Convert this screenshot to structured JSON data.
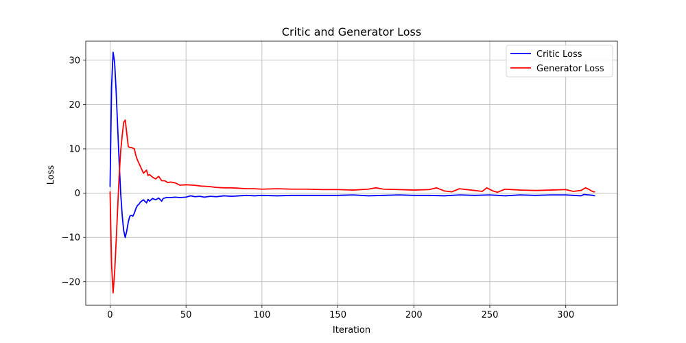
{
  "chart_data": {
    "type": "line",
    "title": "Critic and Generator Loss",
    "xlabel": "Iteration",
    "ylabel": "Loss",
    "xlim": [
      -16,
      334
    ],
    "ylim": [
      -25.3,
      34.3
    ],
    "xticks": [
      0,
      50,
      100,
      150,
      200,
      250,
      300
    ],
    "yticks": [
      -20,
      -10,
      0,
      10,
      20,
      30
    ],
    "ytick_labels": [
      "−20",
      "−10",
      "0",
      "10",
      "20",
      "30"
    ],
    "grid": true,
    "legend_position": "top-right",
    "series": [
      {
        "name": "Critic Loss",
        "color": "#0000ff",
        "x": [
          0,
          1,
          2,
          3,
          4,
          5,
          6,
          7,
          8,
          9,
          10,
          11,
          12,
          13,
          14,
          15,
          16,
          17,
          18,
          19,
          20,
          22,
          24,
          25,
          26,
          28,
          30,
          32,
          34,
          35,
          37,
          40,
          43,
          46,
          50,
          53,
          56,
          59,
          62,
          66,
          70,
          75,
          80,
          85,
          90,
          95,
          100,
          110,
          120,
          130,
          140,
          150,
          160,
          170,
          180,
          190,
          200,
          210,
          220,
          230,
          240,
          250,
          260,
          270,
          280,
          290,
          300,
          305,
          310,
          312,
          315,
          318,
          319
        ],
        "y": [
          1.5,
          24.0,
          31.8,
          29.5,
          23.0,
          15.0,
          7.0,
          0.0,
          -5.0,
          -8.5,
          -10.0,
          -8.5,
          -6.5,
          -5.2,
          -5.0,
          -5.2,
          -4.5,
          -3.5,
          -2.8,
          -2.5,
          -2.0,
          -1.5,
          -2.2,
          -1.4,
          -1.8,
          -1.2,
          -1.5,
          -1.1,
          -1.8,
          -1.2,
          -1.0,
          -1.0,
          -0.9,
          -1.0,
          -0.9,
          -0.6,
          -0.8,
          -0.7,
          -0.9,
          -0.7,
          -0.8,
          -0.6,
          -0.7,
          -0.6,
          -0.5,
          -0.6,
          -0.5,
          -0.6,
          -0.5,
          -0.5,
          -0.5,
          -0.5,
          -0.4,
          -0.6,
          -0.5,
          -0.4,
          -0.5,
          -0.5,
          -0.6,
          -0.4,
          -0.5,
          -0.4,
          -0.6,
          -0.4,
          -0.5,
          -0.4,
          -0.4,
          -0.5,
          -0.6,
          -0.3,
          -0.4,
          -0.5,
          -0.6
        ]
      },
      {
        "name": "Generator Loss",
        "color": "#ff0000",
        "x": [
          0,
          1,
          2,
          3,
          4,
          5,
          6,
          7,
          8,
          9,
          10,
          11,
          12,
          13,
          14,
          16,
          17,
          18,
          20,
          22,
          24,
          25,
          26,
          28,
          30,
          32,
          34,
          36,
          38,
          40,
          43,
          46,
          50,
          55,
          60,
          65,
          70,
          75,
          80,
          85,
          90,
          95,
          100,
          110,
          120,
          130,
          140,
          150,
          160,
          170,
          175,
          180,
          190,
          200,
          210,
          215,
          220,
          225,
          230,
          240,
          245,
          248,
          252,
          255,
          260,
          270,
          280,
          290,
          300,
          305,
          310,
          313,
          315,
          318,
          319
        ],
        "y": [
          0.3,
          -16.0,
          -22.5,
          -18.0,
          -11.0,
          -3.5,
          4.0,
          9.5,
          13.0,
          16.0,
          16.5,
          13.5,
          10.5,
          10.3,
          10.3,
          10.0,
          8.5,
          7.5,
          6.0,
          4.5,
          5.2,
          4.0,
          4.2,
          3.6,
          3.2,
          3.8,
          2.8,
          2.8,
          2.4,
          2.5,
          2.3,
          1.8,
          1.9,
          1.8,
          1.6,
          1.5,
          1.3,
          1.2,
          1.2,
          1.1,
          1.0,
          1.0,
          0.9,
          1.0,
          0.9,
          0.9,
          0.8,
          0.8,
          0.7,
          0.9,
          1.2,
          0.9,
          0.8,
          0.7,
          0.8,
          1.2,
          0.5,
          0.3,
          1.0,
          0.6,
          0.4,
          1.2,
          0.5,
          0.2,
          0.9,
          0.7,
          0.6,
          0.7,
          0.8,
          0.4,
          0.6,
          1.2,
          0.9,
          0.3,
          0.3
        ]
      }
    ]
  }
}
